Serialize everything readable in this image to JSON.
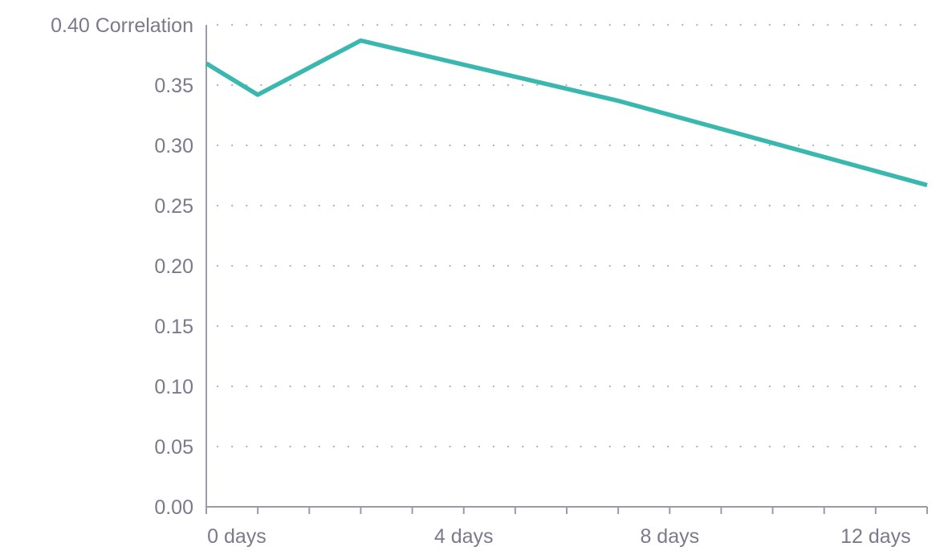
{
  "colors": {
    "line": "#3ab8b0",
    "axis": "#9a9aa8",
    "grid": "#b0b0bc",
    "text": "#7a7a8c"
  },
  "chart_data": {
    "type": "line",
    "title": "",
    "xlabel": "",
    "ylabel": "Correlation",
    "xlim": [
      -1,
      13
    ],
    "ylim": [
      0,
      0.4
    ],
    "grid": "horizontal-dotted",
    "x_ticks": [
      0,
      4,
      8,
      12
    ],
    "x_tick_labels": [
      "0 days",
      "4 days",
      "8 days",
      "12 days"
    ],
    "y_ticks": [
      0,
      0.05,
      0.1,
      0.15,
      0.2,
      0.25,
      0.3,
      0.35,
      0.4
    ],
    "y_tick_labels": [
      "0.00",
      "0.05",
      "0.10",
      "0.15",
      "0.20",
      "0.25",
      "0.30",
      "0.35",
      "0.40"
    ],
    "top_label_suffix": "Correlation",
    "x_minor_ticks": [
      -1,
      0,
      1,
      2,
      3,
      4,
      5,
      6,
      7,
      8,
      9,
      10,
      11,
      12,
      13
    ],
    "series": [
      {
        "x": [
          -1,
          0,
          2,
          7,
          13
        ],
        "y": [
          0.368,
          0.342,
          0.387,
          0.337,
          0.267
        ]
      }
    ]
  }
}
